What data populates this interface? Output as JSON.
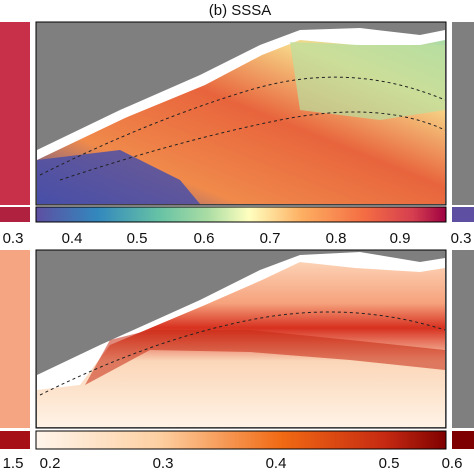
{
  "top_panel": {
    "title": "(b) SSSA",
    "left_edge_label": "0.3",
    "colorbar_ticks": [
      "0.4",
      "0.5",
      "0.6",
      "0.7",
      "0.8",
      "0.9"
    ],
    "right_edge_label": "0.3"
  },
  "bottom_panel": {
    "left_edge_label": "1.5",
    "colorbar_ticks": [
      "0.2",
      "0.3",
      "0.4",
      "0.5",
      "0.6"
    ]
  }
}
